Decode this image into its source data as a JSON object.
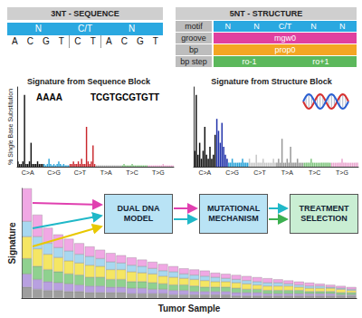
{
  "diagram": {
    "sequence_block": {
      "title": "3NT - SEQUENCE",
      "motif": [
        "N",
        "C/T",
        "N"
      ],
      "bases": [
        [
          "A",
          "C",
          "G",
          "T"
        ],
        [
          "C",
          "T"
        ],
        [
          "A",
          "C",
          "G",
          "T"
        ]
      ]
    },
    "structure_block": {
      "title": "5NT - STRUCTURE",
      "rows": [
        {
          "label": "motif",
          "cells": [
            "N",
            "N",
            "C/T",
            "N",
            "N"
          ]
        },
        {
          "label": "groove",
          "cells": [
            "mgw0"
          ]
        },
        {
          "label": "bp",
          "cells": [
            "prop0"
          ]
        },
        {
          "label": "bp step",
          "cells": [
            "ro-1",
            "ro+1"
          ]
        }
      ]
    },
    "flow": [
      "DUAL DNA MODEL",
      "MUTATIONAL MECHANISM",
      "TREATMENT SELECTION"
    ]
  },
  "chart_data": [
    {
      "type": "bar",
      "title": "Signature from Sequence Block",
      "y_label": "% Single Base Substitution",
      "categories": [
        null,
        null,
        null,
        null,
        null,
        null,
        "C>A",
        null,
        null,
        null,
        null,
        null,
        null,
        null,
        null,
        null,
        null,
        null,
        null,
        null,
        null,
        null,
        "C>G",
        null,
        null,
        null,
        null,
        null,
        null,
        null,
        null,
        null,
        null,
        null,
        null,
        null,
        null,
        null,
        "C>T",
        null,
        null,
        null,
        null,
        null,
        null,
        null,
        null,
        null,
        null,
        null,
        null,
        null,
        null,
        null,
        "T>A",
        null,
        null,
        null,
        null,
        null,
        null,
        null,
        null,
        null,
        null,
        null,
        null,
        null,
        null,
        null,
        "T>C",
        null,
        null,
        null,
        null,
        null,
        null,
        null,
        null,
        null,
        null,
        null,
        null,
        null,
        null,
        null,
        "T>G",
        null,
        null,
        null,
        null,
        null,
        null,
        null,
        null,
        null
      ],
      "values": [
        2,
        1,
        1,
        2,
        27,
        1,
        1,
        2,
        9,
        1,
        1,
        1,
        2,
        1,
        1,
        1,
        1,
        0.5,
        1,
        3,
        1,
        0.5,
        1,
        0.5,
        1,
        2,
        1,
        0.5,
        1,
        0.5,
        0.5,
        0.5,
        1,
        1,
        2,
        1,
        1,
        2,
        1,
        3,
        1,
        1,
        15,
        2,
        1,
        2,
        8,
        1,
        0.5,
        0.5,
        0.5,
        0.5,
        0.5,
        0.5,
        0.5,
        0.5,
        0.5,
        0.5,
        0.5,
        0.5,
        0.5,
        0.5,
        0.5,
        0.5,
        0.5,
        1,
        0.5,
        0.5,
        0.5,
        0.5,
        1,
        0.5,
        0.5,
        0.5,
        0.5,
        0.5,
        0.5,
        0.5,
        0.5,
        0.5,
        0.5,
        0.5,
        0.5,
        0.5,
        0.5,
        0.5,
        0.5,
        0.5,
        0.5,
        1,
        0.5,
        0.5,
        0.5,
        0.5,
        0.5,
        0.5
      ],
      "colors": [
        "#111111",
        "#111111",
        "#111111",
        "#111111",
        "#111111",
        "#111111",
        "#111111",
        "#111111",
        "#111111",
        "#111111",
        "#111111",
        "#111111",
        "#111111",
        "#111111",
        "#111111",
        "#111111",
        "#2aa3d9",
        "#2aa3d9",
        "#2aa3d9",
        "#2aa3d9",
        "#2aa3d9",
        "#2aa3d9",
        "#2aa3d9",
        "#2aa3d9",
        "#2aa3d9",
        "#2aa3d9",
        "#2aa3d9",
        "#2aa3d9",
        "#2aa3d9",
        "#2aa3d9",
        "#2aa3d9",
        "#2aa3d9",
        "#c8262c",
        "#c8262c",
        "#c8262c",
        "#c8262c",
        "#c8262c",
        "#c8262c",
        "#c8262c",
        "#c8262c",
        "#c8262c",
        "#c8262c",
        "#c8262c",
        "#c8262c",
        "#c8262c",
        "#c8262c",
        "#c8262c",
        "#c8262c",
        "#b0b0b0",
        "#b0b0b0",
        "#b0b0b0",
        "#b0b0b0",
        "#b0b0b0",
        "#b0b0b0",
        "#b0b0b0",
        "#b0b0b0",
        "#b0b0b0",
        "#b0b0b0",
        "#b0b0b0",
        "#b0b0b0",
        "#b0b0b0",
        "#b0b0b0",
        "#b0b0b0",
        "#b0b0b0",
        "#80c57f",
        "#80c57f",
        "#80c57f",
        "#80c57f",
        "#80c57f",
        "#80c57f",
        "#80c57f",
        "#80c57f",
        "#80c57f",
        "#80c57f",
        "#80c57f",
        "#80c57f",
        "#80c57f",
        "#80c57f",
        "#80c57f",
        "#80c57f",
        "#eaa6cf",
        "#eaa6cf",
        "#eaa6cf",
        "#eaa6cf",
        "#eaa6cf",
        "#eaa6cf",
        "#eaa6cf",
        "#eaa6cf",
        "#eaa6cf",
        "#eaa6cf",
        "#eaa6cf",
        "#eaa6cf",
        "#eaa6cf",
        "#eaa6cf",
        "#eaa6cf",
        "#eaa6cf"
      ],
      "annotations": [
        "AAAA",
        "TCGTGCGTGTT"
      ],
      "ylim": [
        0,
        30
      ],
      "tick_labels": "x"
    },
    {
      "type": "bar",
      "title": "Signature from Structure Block",
      "categories": [
        null,
        null,
        null,
        null,
        null,
        null,
        "C>A",
        null,
        null,
        null,
        null,
        null,
        null,
        null,
        null,
        null,
        null,
        null,
        null,
        null,
        null,
        null,
        "C>G",
        null,
        null,
        null,
        null,
        null,
        null,
        null,
        null,
        null,
        null,
        null,
        null,
        null,
        null,
        null,
        "C>T",
        null,
        null,
        null,
        null,
        null,
        null,
        null,
        null,
        null,
        null,
        null,
        null,
        null,
        null,
        null,
        "T>A",
        null,
        null,
        null,
        null,
        null,
        null,
        null,
        null,
        null,
        null,
        null,
        null,
        null,
        null,
        null,
        "T>C",
        null,
        null,
        null,
        null,
        null,
        null,
        null,
        null,
        null,
        null,
        null,
        null,
        null,
        null,
        null,
        "T>G",
        null,
        null,
        null,
        null,
        null,
        null,
        null,
        null,
        null
      ],
      "values": [
        4,
        18,
        3,
        6,
        2,
        4,
        10,
        3,
        2,
        5,
        2,
        3,
        8,
        12,
        9,
        6,
        11,
        5,
        3,
        2,
        1,
        1,
        2,
        1,
        1,
        1,
        1,
        1,
        2,
        1,
        1,
        1,
        2,
        1,
        1,
        1,
        3,
        1,
        1,
        1,
        2,
        1,
        1,
        1,
        1,
        1,
        2,
        1,
        1,
        2,
        1,
        7,
        1,
        1,
        2,
        1,
        5,
        1,
        1,
        1,
        2,
        1,
        1,
        1,
        1,
        1,
        1,
        1,
        2,
        1,
        1,
        1,
        1,
        1,
        1,
        1,
        1,
        1,
        1,
        1,
        1,
        1,
        1,
        1,
        1,
        1,
        2,
        1,
        1,
        1,
        1,
        1,
        1,
        1,
        1,
        1
      ],
      "colors": [
        "#111111",
        "#111111",
        "#111111",
        "#111111",
        "#111111",
        "#111111",
        "#111111",
        "#111111",
        "#111111",
        "#111111",
        "#111111",
        "#111111",
        "#111111",
        "#2233aa",
        "#2233aa",
        "#2233aa",
        "#2233aa",
        "#2233aa",
        "#2233aa",
        "#2233aa",
        "#2aa3d9",
        "#2aa3d9",
        "#2aa3d9",
        "#2aa3d9",
        "#2aa3d9",
        "#2aa3d9",
        "#2aa3d9",
        "#2aa3d9",
        "#2aa3d9",
        "#2aa3d9",
        "#2aa3d9",
        "#2aa3d9",
        "#c8c8c8",
        "#c8c8c8",
        "#c8c8c8",
        "#c8c8c8",
        "#c8c8c8",
        "#c8c8c8",
        "#c8c8c8",
        "#c8c8c8",
        "#c8c8c8",
        "#c8c8c8",
        "#c8c8c8",
        "#c8c8c8",
        "#c8c8c8",
        "#c8c8c8",
        "#c8c8c8",
        "#c8c8c8",
        "#999999",
        "#999999",
        "#999999",
        "#999999",
        "#999999",
        "#999999",
        "#999999",
        "#999999",
        "#999999",
        "#999999",
        "#999999",
        "#999999",
        "#999999",
        "#999999",
        "#999999",
        "#999999",
        "#80c57f",
        "#80c57f",
        "#80c57f",
        "#80c57f",
        "#80c57f",
        "#80c57f",
        "#80c57f",
        "#80c57f",
        "#80c57f",
        "#80c57f",
        "#80c57f",
        "#80c57f",
        "#80c57f",
        "#80c57f",
        "#80c57f",
        "#80c57f",
        "#eaa6cf",
        "#eaa6cf",
        "#eaa6cf",
        "#eaa6cf",
        "#eaa6cf",
        "#eaa6cf",
        "#eaa6cf",
        "#eaa6cf",
        "#eaa6cf",
        "#eaa6cf",
        "#eaa6cf",
        "#eaa6cf",
        "#eaa6cf",
        "#eaa6cf",
        "#eaa6cf",
        "#eaa6cf"
      ],
      "ylim": [
        0,
        20
      ],
      "tick_labels": "x"
    },
    {
      "type": "bar",
      "stacked": true,
      "y_label": "Signature",
      "x_label": "Tumor Sample",
      "series": [
        {
          "color": "#9e9e9e",
          "values": [
            10,
            8,
            7,
            7,
            6,
            6,
            5,
            5,
            5,
            5,
            4,
            4,
            4,
            4,
            3,
            3,
            3,
            3,
            3,
            3,
            2,
            2,
            2,
            2,
            2,
            2,
            2,
            2,
            2,
            2,
            2,
            2
          ]
        },
        {
          "color": "#b8a0e0",
          "values": [
            12,
            9,
            8,
            7,
            7,
            6,
            6,
            6,
            5,
            5,
            5,
            5,
            4,
            4,
            4,
            4,
            3,
            3,
            3,
            3,
            3,
            3,
            3,
            2,
            2,
            2,
            2,
            2,
            2,
            2,
            1,
            1
          ]
        },
        {
          "color": "#8fd18f",
          "values": [
            14,
            12,
            11,
            10,
            9,
            9,
            8,
            8,
            7,
            7,
            6,
            6,
            6,
            5,
            5,
            5,
            5,
            4,
            4,
            4,
            4,
            3,
            3,
            3,
            3,
            3,
            3,
            2,
            2,
            2,
            2,
            2
          ]
        },
        {
          "color": "#f5e663",
          "values": [
            20,
            16,
            14,
            13,
            12,
            11,
            11,
            10,
            9,
            9,
            9,
            8,
            8,
            7,
            7,
            6,
            6,
            6,
            5,
            5,
            5,
            5,
            4,
            4,
            4,
            4,
            3,
            3,
            3,
            3,
            3,
            2
          ]
        },
        {
          "color": "#a8d8f0",
          "values": [
            14,
            11,
            10,
            9,
            9,
            8,
            8,
            7,
            7,
            6,
            6,
            6,
            5,
            5,
            5,
            4,
            4,
            4,
            4,
            3,
            3,
            3,
            3,
            3,
            3,
            2,
            2,
            2,
            2,
            1,
            1,
            1
          ]
        },
        {
          "color": "#f0a8e4",
          "values": [
            30,
            20,
            14,
            12,
            11,
            10,
            9,
            8,
            8,
            7,
            7,
            6,
            6,
            6,
            5,
            5,
            5,
            5,
            4,
            4,
            4,
            4,
            4,
            4,
            3,
            3,
            3,
            3,
            2,
            2,
            2,
            2
          ]
        }
      ],
      "ylim": [
        0,
        100
      ],
      "tick_labels": false
    }
  ]
}
